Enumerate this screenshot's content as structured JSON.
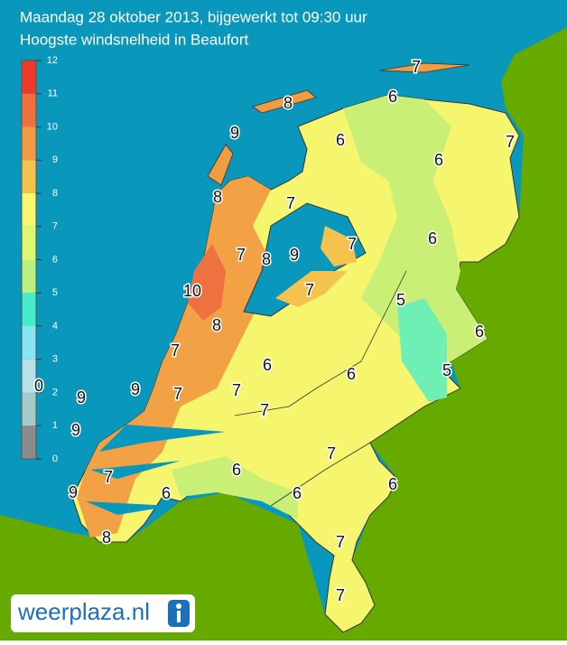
{
  "header": {
    "title": "Maandag 28 oktober 2013, bijgewerkt tot 09:30 uur",
    "subtitle": "Hoogste windsnelheid in Beaufort"
  },
  "legend": {
    "ticks": [
      0,
      1,
      2,
      3,
      4,
      5,
      6,
      7,
      8,
      9,
      10,
      11,
      12
    ],
    "colors": [
      "#8c8c8c",
      "#a6c9c9",
      "#b4e2e8",
      "#86e6f2",
      "#45ebcb",
      "#b8f27e",
      "#dcf870",
      "#f8f870",
      "#f5c24e",
      "#f29c42",
      "#ee7240",
      "#ee3a2a",
      "#c42424"
    ]
  },
  "map_labels": [
    "7",
    "6",
    "8",
    "9",
    "6",
    "7",
    "6",
    "8",
    "7",
    "7",
    "6",
    "7",
    "8",
    "9",
    "7",
    "10",
    "5",
    "8",
    "6",
    "7",
    "6",
    "6",
    "5",
    "0",
    "9",
    "9",
    "7",
    "7",
    "7",
    "9",
    "7",
    "6",
    "7",
    "6",
    "9",
    "6",
    "6",
    "7",
    "8",
    "7"
  ],
  "logo": "weerplaza.nl"
}
